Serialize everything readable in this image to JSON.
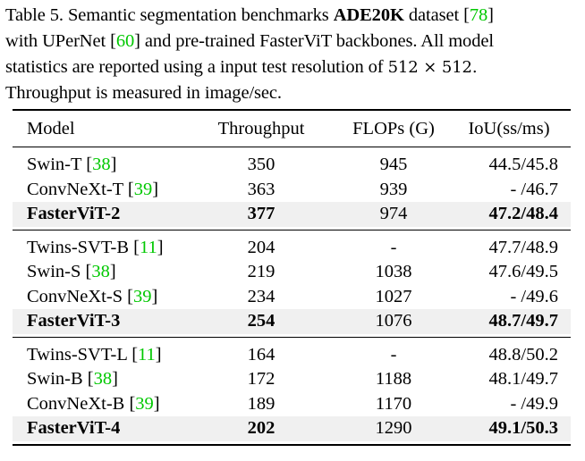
{
  "caption": {
    "line1_pre": "Table 5. Semantic segmentation benchmarks ",
    "line1_bold": "ADE20K",
    "line1_post": " dataset [",
    "line1_cite": "78",
    "line1_end": "]",
    "line2_pre": "with UPerNet [",
    "line2_cite": "60",
    "line2_post": "] and pre-trained FasterViT backbones. All model",
    "line3_pre": "statistics are reported using a input test resolution of ",
    "line3_math": "512 × 512.",
    "line4": "Throughput is measured in image/sec."
  },
  "table": {
    "headers": [
      "Model",
      "Throughput",
      "FLOPs (G)",
      "IoU(ss/ms)"
    ],
    "groups": [
      {
        "rows": [
          {
            "model": "Swin-T [",
            "cite": "38",
            "throughput": "350",
            "flops": "945",
            "iou": "44.5/45.8",
            "bold": false
          },
          {
            "model": "ConvNeXt-T [",
            "cite": "39",
            "throughput": "363",
            "flops": "939",
            "iou": "- /46.7",
            "bold": false
          },
          {
            "model": "FasterViT-2",
            "cite": "",
            "throughput": "377",
            "flops": "974",
            "iou": "47.2/48.4",
            "bold": true
          }
        ]
      },
      {
        "rows": [
          {
            "model": "Twins-SVT-B [",
            "cite": "11",
            "throughput": "204",
            "flops": "-",
            "iou": "47.7/48.9",
            "bold": false
          },
          {
            "model": "Swin-S [",
            "cite": "38",
            "throughput": "219",
            "flops": "1038",
            "iou": "47.6/49.5",
            "bold": false
          },
          {
            "model": "ConvNeXt-S [",
            "cite": "39",
            "throughput": "234",
            "flops": "1027",
            "iou": "- /49.6",
            "bold": false
          },
          {
            "model": "FasterViT-3",
            "cite": "",
            "throughput": "254",
            "flops": "1076",
            "iou": "48.7/49.7",
            "bold": true
          }
        ]
      },
      {
        "rows": [
          {
            "model": "Twins-SVT-L [",
            "cite": "11",
            "throughput": "164",
            "flops": "-",
            "iou": "48.8/50.2",
            "bold": false
          },
          {
            "model": "Swin-B [",
            "cite": "38",
            "throughput": "172",
            "flops": "1188",
            "iou": "48.1/49.7",
            "bold": false
          },
          {
            "model": "ConvNeXt-B [",
            "cite": "39",
            "throughput": "189",
            "flops": "1170",
            "iou": "- /49.9",
            "bold": false
          },
          {
            "model": "FasterViT-4",
            "cite": "",
            "throughput": "202",
            "flops": "1290",
            "iou": "49.1/50.3",
            "bold": true
          }
        ]
      }
    ]
  },
  "colors": {
    "citation": "#00c800",
    "highlight_row": "#f0f0f0"
  }
}
